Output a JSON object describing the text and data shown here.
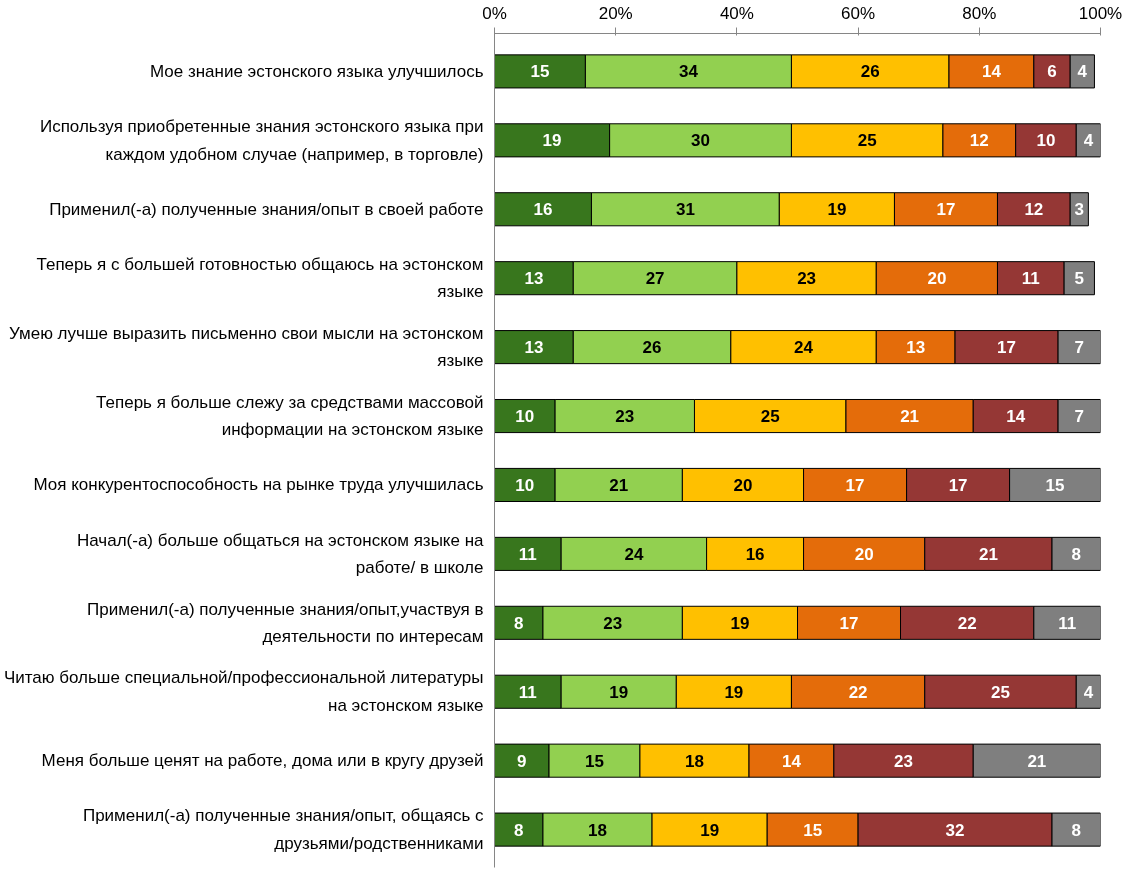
{
  "chart_data": {
    "type": "bar",
    "orientation": "horizontal",
    "stacked": true,
    "data_labels": true,
    "categories": [
      "Мое знание эстонского языка улучшилось",
      "Используя приобретенные знания эстонского языка при каждом удобном случае (например, в торговле)",
      "Применил(-а) полученные знания/опыт в своей работе",
      "Теперь я с большей готовностью общаюсь на эстонском языке",
      "Умею лучше выразить письменно свои мысли на эстонском языке",
      "Теперь я больше слежу за средствами массовой информации на эстонском языке",
      "Моя конкурентоспособность на рынке труда улучшилась",
      "Начал(-а) больше общаться на эстонском языке на работе/ в школе",
      "Применил(-а) полученные знания/опыт,участвуя в деятельности по интересам",
      "Читаю больше специальной/профессиональной литературы на эстонском языке",
      "Меня больше ценят на работе, дома или в кругу друзей",
      "Применил(-а) полученные знания/опыт, общаясь с друзьями/родственниками"
    ],
    "series": [
      {
        "color": "#38761d",
        "values": [
          15,
          19,
          16,
          13,
          13,
          10,
          10,
          11,
          8,
          11,
          9,
          8
        ]
      },
      {
        "color": "#92d050",
        "values": [
          34,
          30,
          31,
          27,
          26,
          23,
          21,
          24,
          23,
          19,
          15,
          18
        ]
      },
      {
        "color": "#ffc000",
        "values": [
          26,
          25,
          19,
          23,
          24,
          25,
          20,
          16,
          19,
          19,
          18,
          19
        ]
      },
      {
        "color": "#e46c0a",
        "values": [
          14,
          12,
          17,
          20,
          13,
          21,
          17,
          20,
          17,
          22,
          14,
          15
        ]
      },
      {
        "color": "#953735",
        "values": [
          6,
          10,
          12,
          11,
          17,
          14,
          17,
          21,
          22,
          25,
          23,
          32
        ]
      },
      {
        "color": "#7f7f7f",
        "values": [
          4,
          4,
          3,
          5,
          7,
          7,
          15,
          8,
          11,
          4,
          21,
          8
        ]
      }
    ],
    "xlim": [
      0,
      100
    ],
    "xticks": [
      {
        "value": 0,
        "label": "0%"
      },
      {
        "value": 20,
        "label": "20%"
      },
      {
        "value": 40,
        "label": "40%"
      },
      {
        "value": 60,
        "label": "60%"
      },
      {
        "value": 80,
        "label": "80%"
      },
      {
        "value": 100,
        "label": "100%"
      }
    ]
  }
}
